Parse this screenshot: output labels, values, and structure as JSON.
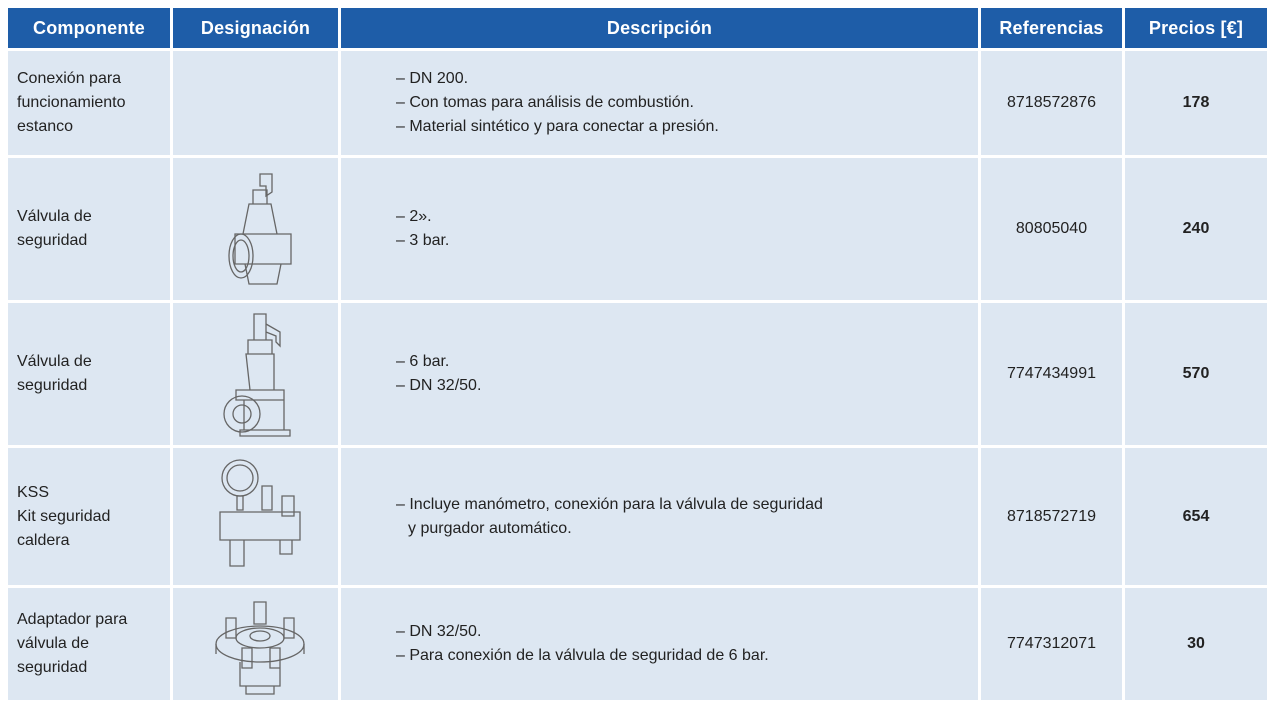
{
  "table": {
    "headers": [
      "Componente",
      "Designación",
      "Descripción",
      "Referencias",
      "Precios [€]"
    ],
    "rows": [
      {
        "component": [
          "Conexión para",
          "funcionamiento",
          "estanco"
        ],
        "description": [
          "– DN 200.",
          "– Con tomas para análisis de combustión.",
          "– Material sintético y para conectar a presión."
        ],
        "reference": "8718572876",
        "price": 178
      },
      {
        "component": [
          "Válvula de",
          "seguridad"
        ],
        "description": [
          "– 2».",
          "– 3 bar."
        ],
        "reference": "80805040",
        "price": 240
      },
      {
        "component": [
          "Válvula de",
          "seguridad"
        ],
        "description": [
          "– 6 bar.",
          "– DN 32/50."
        ],
        "reference": "7747434991",
        "price": 570
      },
      {
        "component": [
          "KSS",
          "Kit seguridad",
          "caldera"
        ],
        "description": [
          "– Incluye manómetro, conexión para la válvula de seguridad",
          "y purgador automático."
        ],
        "reference": "8718572719",
        "price": 654
      },
      {
        "component": [
          "Adaptador para",
          "válvula de",
          "seguridad"
        ],
        "description": [
          "– DN 32/50.",
          "– Para conexión de la válvula de seguridad de 6 bar."
        ],
        "reference": "7747312071",
        "price": 30
      }
    ]
  }
}
